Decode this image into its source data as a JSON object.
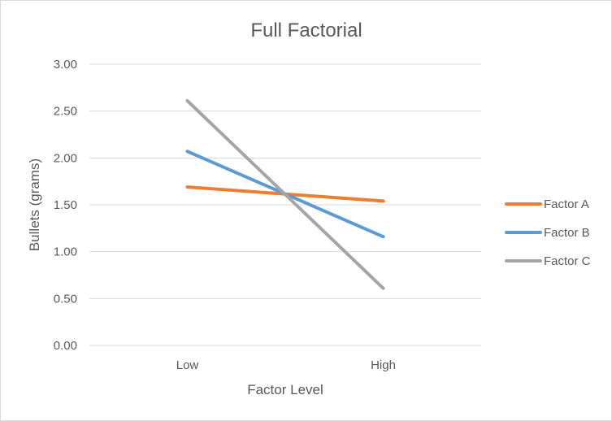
{
  "chart_data": {
    "type": "line",
    "title": "Full Factorial",
    "xlabel": "Factor Level",
    "ylabel": "Bullets (grams)",
    "categories": [
      "Low",
      "High"
    ],
    "ylim": [
      0,
      3
    ],
    "yticks": [
      "0.00",
      "0.50",
      "1.00",
      "1.50",
      "2.00",
      "2.50",
      "3.00"
    ],
    "grid": true,
    "legend_position": "right",
    "series": [
      {
        "name": "Factor A",
        "color": "#ed7d31",
        "values": [
          1.69,
          1.54
        ]
      },
      {
        "name": "Factor B",
        "color": "#5b9bd5",
        "values": [
          2.07,
          1.16
        ]
      },
      {
        "name": "Factor C",
        "color": "#a5a5a5",
        "values": [
          2.61,
          0.61
        ]
      }
    ]
  }
}
